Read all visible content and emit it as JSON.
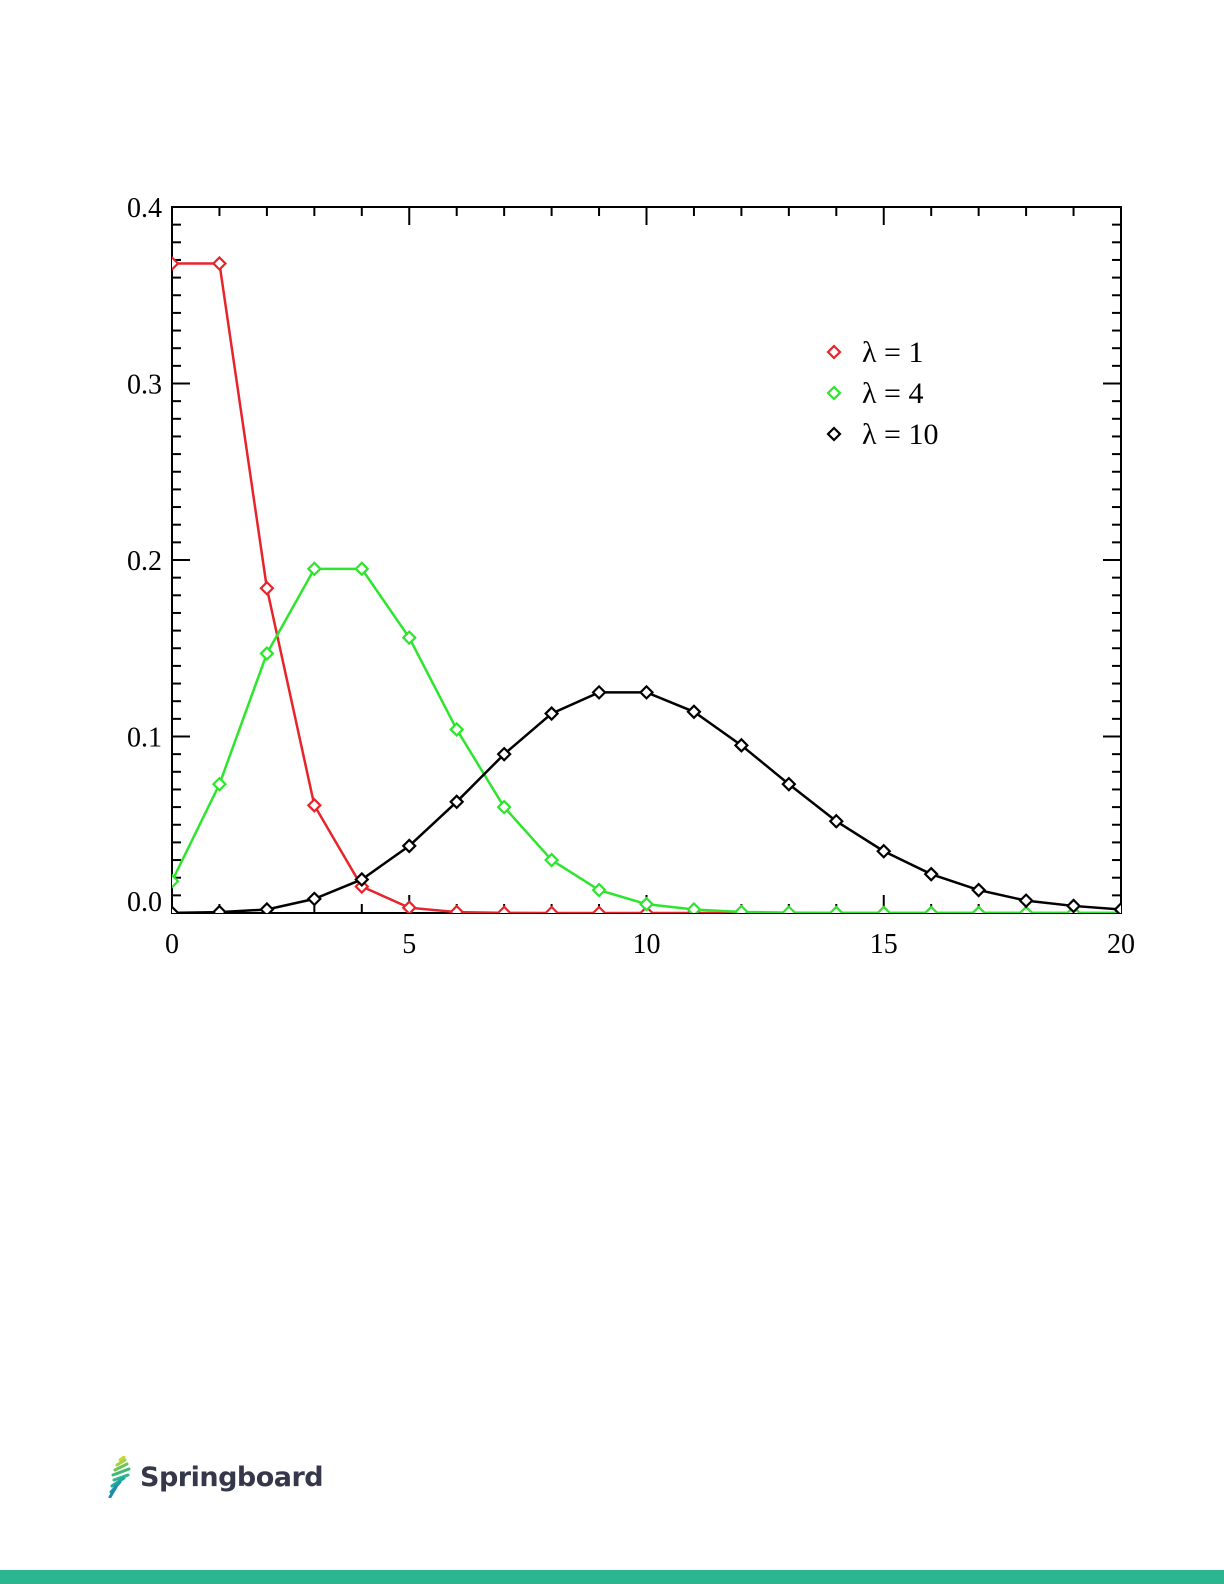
{
  "chart_data": {
    "type": "line",
    "title": "",
    "xlabel": "",
    "ylabel": "",
    "xlim": [
      0,
      20
    ],
    "ylim": [
      0,
      0.4
    ],
    "x_major_ticks": [
      0,
      5,
      10,
      15,
      20
    ],
    "x_tick_labels": [
      "0",
      "5",
      "10",
      "15",
      "20"
    ],
    "y_major_ticks": [
      0,
      0.1,
      0.2,
      0.3,
      0.4
    ],
    "y_tick_labels": [
      "0.0",
      "0.1",
      "0.2",
      "0.3",
      "0.4"
    ],
    "grid": false,
    "legend_position": "top-right",
    "marker": "diamond",
    "x": [
      0,
      1,
      2,
      3,
      4,
      5,
      6,
      7,
      8,
      9,
      10,
      11,
      12,
      13,
      14,
      15,
      16,
      17,
      18,
      19,
      20
    ],
    "series": [
      {
        "name": "λ = 1",
        "color": "#e8232a",
        "values": [
          0.368,
          0.368,
          0.184,
          0.061,
          0.015,
          0.003,
          0.0005,
          0.0001,
          0,
          0,
          0,
          0,
          0,
          0,
          0,
          0,
          0,
          0,
          0,
          0,
          0
        ]
      },
      {
        "name": "λ = 4",
        "color": "#2ee52e",
        "values": [
          0.018,
          0.073,
          0.147,
          0.195,
          0.195,
          0.156,
          0.104,
          0.06,
          0.03,
          0.013,
          0.005,
          0.002,
          0.0006,
          0.0002,
          0,
          0,
          0,
          0,
          0,
          0,
          0
        ]
      },
      {
        "name": "λ = 10",
        "color": "#000000",
        "values": [
          5e-05,
          0.0005,
          0.002,
          0.008,
          0.019,
          0.038,
          0.063,
          0.09,
          0.113,
          0.125,
          0.125,
          0.114,
          0.095,
          0.073,
          0.052,
          0.035,
          0.022,
          0.013,
          0.007,
          0.004,
          0.002
        ]
      }
    ]
  },
  "brand": {
    "name": "Springboard",
    "text_color": "#34384a",
    "accent_color": "#2bb68f",
    "logo_icon": "springboard-leaf-icon"
  }
}
